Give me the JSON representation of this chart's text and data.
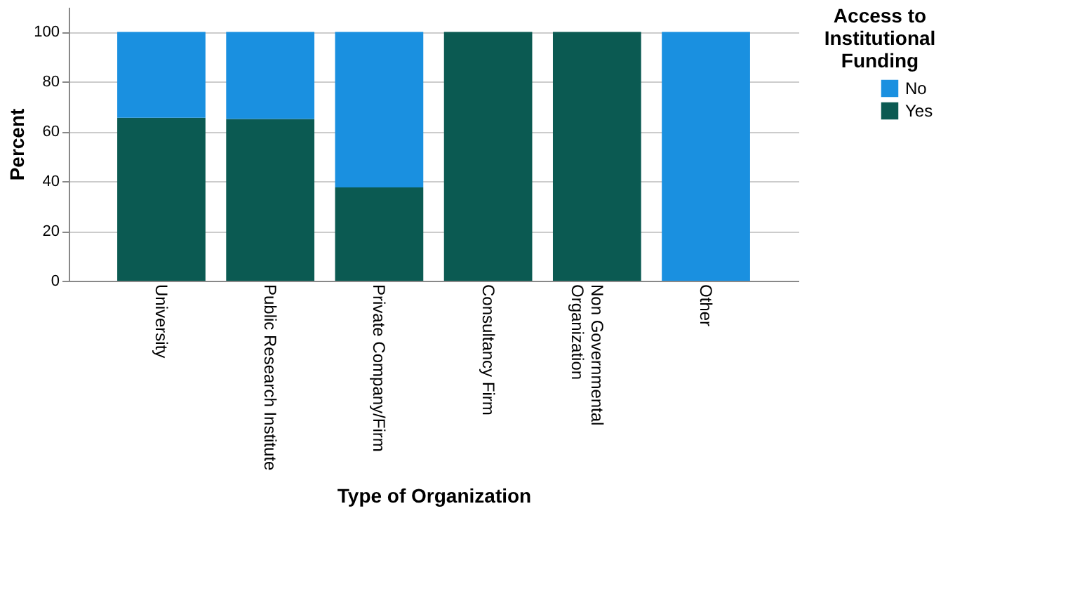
{
  "chart_data": {
    "type": "bar",
    "stacked": true,
    "xlabel": "Type of Organization",
    "ylabel": "Percent",
    "legend_title": "Access to Institutional Funding",
    "legend": "top right",
    "grid": "y",
    "categories": [
      "University",
      "Public Research Institute",
      "Private Company/Firm",
      "Consultancy Firm",
      "Non Governmental Organization",
      "Other"
    ],
    "series": [
      {
        "name": "Yes",
        "color": "#0b5a52",
        "values": [
          65.5,
          65,
          37.5,
          100,
          100,
          0
        ]
      },
      {
        "name": "No",
        "color": "#1a90e0",
        "values": [
          34.5,
          35,
          62.5,
          0,
          0,
          100
        ]
      }
    ],
    "ylim": [
      0,
      110
    ],
    "yticks": [
      0,
      20,
      40,
      60,
      80,
      100
    ]
  }
}
